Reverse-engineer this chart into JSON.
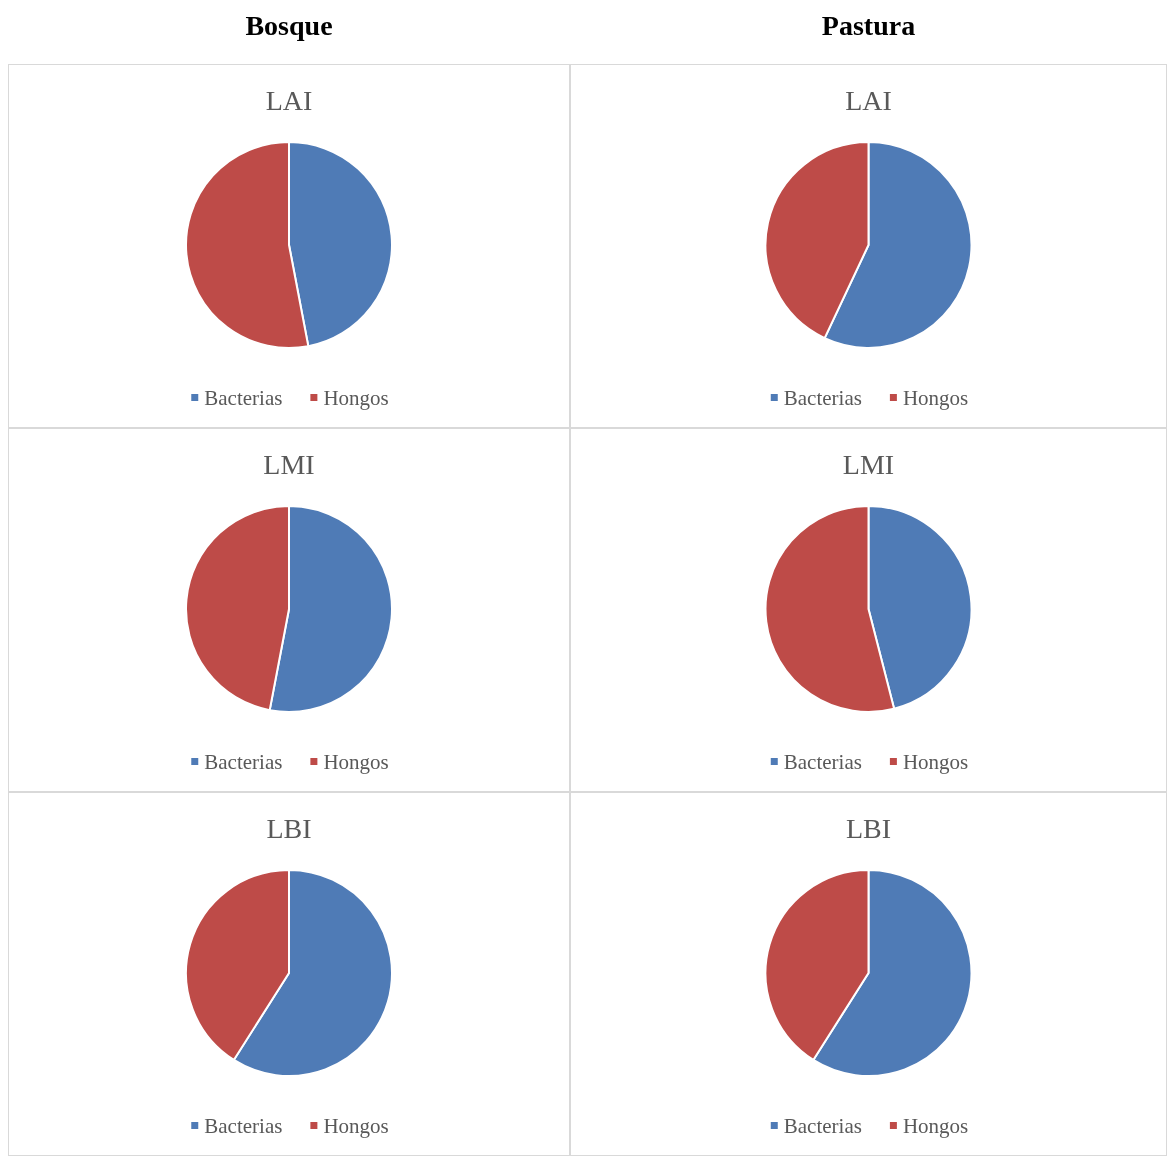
{
  "chart_data": [
    {
      "type": "other",
      "title": "Bosque"
    },
    {
      "type": "other",
      "title": "Pastura"
    },
    {
      "type": "pie",
      "title": "LAI",
      "categories": [
        "Bacterias",
        "Hongos"
      ],
      "values": [
        47,
        53
      ],
      "colors": [
        "#4f7bb6",
        "#be4b48"
      ],
      "legend": "bottom"
    },
    {
      "type": "pie",
      "title": "LAI",
      "categories": [
        "Bacterias",
        "Hongos"
      ],
      "values": [
        57,
        43
      ],
      "colors": [
        "#4f7bb6",
        "#be4b48"
      ],
      "legend": "bottom"
    },
    {
      "type": "pie",
      "title": "LMI",
      "categories": [
        "Bacterias",
        "Hongos"
      ],
      "values": [
        53,
        47
      ],
      "colors": [
        "#4f7bb6",
        "#be4b48"
      ],
      "legend": "bottom"
    },
    {
      "type": "pie",
      "title": "LMI",
      "categories": [
        "Bacterias",
        "Hongos"
      ],
      "values": [
        46,
        54
      ],
      "colors": [
        "#4f7bb6",
        "#be4b48"
      ],
      "legend": "bottom"
    },
    {
      "type": "pie",
      "title": "LBI",
      "categories": [
        "Bacterias",
        "Hongos"
      ],
      "values": [
        59,
        41
      ],
      "colors": [
        "#4f7bb6",
        "#be4b48"
      ],
      "legend": "bottom"
    },
    {
      "type": "pie",
      "title": "LBI",
      "categories": [
        "Bacterias",
        "Hongos"
      ],
      "values": [
        59,
        41
      ],
      "colors": [
        "#4f7bb6",
        "#be4b48"
      ],
      "legend": "bottom"
    }
  ]
}
